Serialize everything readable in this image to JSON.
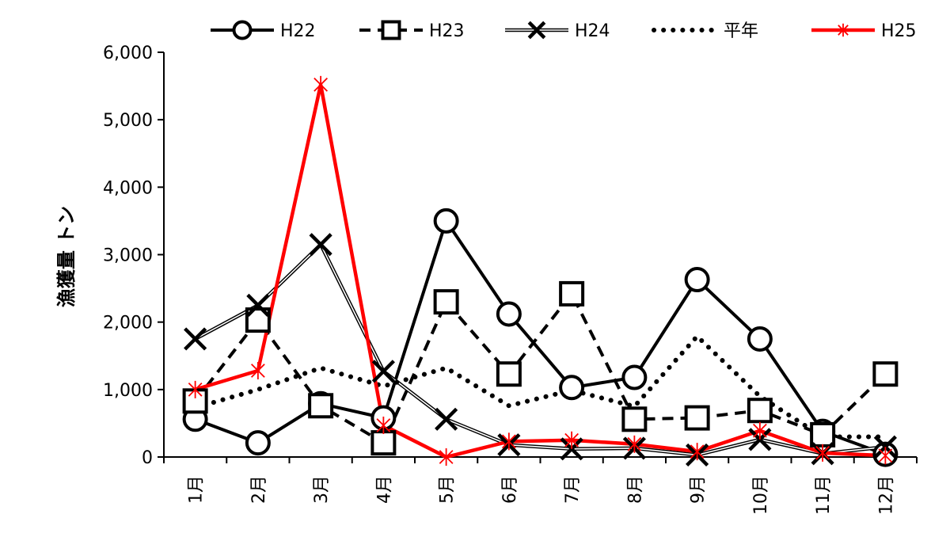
{
  "chart_data": {
    "type": "line",
    "title": "",
    "xlabel": "",
    "ylabel": "漁獲量 トン",
    "ylim": [
      0,
      6000
    ],
    "yticks": [
      0,
      1000,
      2000,
      3000,
      4000,
      5000,
      6000
    ],
    "ytick_labels": [
      "0",
      "1,000",
      "2,000",
      "3,000",
      "4,000",
      "5,000",
      "6,000"
    ],
    "grid": false,
    "legend_position": "top",
    "categories": [
      "1月",
      "2月",
      "3月",
      "4月",
      "5月",
      "6月",
      "7月",
      "8月",
      "9月",
      "10月",
      "11月",
      "12月"
    ],
    "series": [
      {
        "name": "H22",
        "color": "#000000",
        "line": "solid-thick",
        "marker": "circle",
        "values": [
          560,
          210,
          790,
          580,
          3500,
          2120,
          1030,
          1180,
          2630,
          1750,
          380,
          40
        ]
      },
      {
        "name": "H23",
        "color": "#000000",
        "line": "dashed",
        "marker": "square",
        "values": [
          830,
          2030,
          760,
          210,
          2300,
          1230,
          2420,
          560,
          580,
          690,
          330,
          1230
        ]
      },
      {
        "name": "H24",
        "color": "#000000",
        "line": "double",
        "marker": "x",
        "values": [
          1750,
          2250,
          3150,
          1270,
          560,
          180,
          120,
          130,
          30,
          260,
          50,
          150
        ]
      },
      {
        "name": "平年",
        "color": "#000000",
        "line": "dotted",
        "marker": "none",
        "values": [
          730,
          1000,
          1320,
          1050,
          1320,
          760,
          990,
          750,
          1790,
          900,
          300,
          300
        ]
      },
      {
        "name": "H25",
        "color": "#ff0000",
        "line": "solid-red",
        "marker": "asterisk",
        "values": [
          1000,
          1280,
          5520,
          470,
          0,
          230,
          250,
          190,
          80,
          390,
          60,
          20
        ]
      }
    ]
  }
}
